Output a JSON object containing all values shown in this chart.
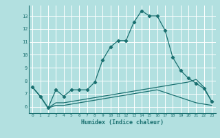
{
  "xlabel": "Humidex (Indice chaleur)",
  "ylabel": "",
  "background_color": "#b2e0e0",
  "grid_color": "#ffffff",
  "line_color": "#1a7070",
  "xlim": [
    -0.5,
    23.5
  ],
  "ylim": [
    5.5,
    13.8
  ],
  "yticks": [
    6,
    7,
    8,
    9,
    10,
    11,
    12,
    13
  ],
  "xticks": [
    0,
    1,
    2,
    3,
    4,
    5,
    6,
    7,
    8,
    9,
    10,
    11,
    12,
    13,
    14,
    15,
    16,
    17,
    18,
    19,
    20,
    21,
    22,
    23
  ],
  "series1_x": [
    0,
    1,
    2,
    3,
    4,
    5,
    6,
    7,
    8,
    9,
    10,
    11,
    12,
    13,
    14,
    15,
    16,
    17,
    18,
    19,
    20,
    21,
    22,
    23
  ],
  "series1_y": [
    7.5,
    6.8,
    5.9,
    7.3,
    6.8,
    7.3,
    7.3,
    7.3,
    7.9,
    9.6,
    10.6,
    11.1,
    11.1,
    12.5,
    13.4,
    13.0,
    13.0,
    11.9,
    9.8,
    8.8,
    8.2,
    7.8,
    7.4,
    6.4
  ],
  "series2_x": [
    0,
    1,
    2,
    3,
    4,
    5,
    6,
    7,
    8,
    9,
    10,
    11,
    12,
    13,
    14,
    15,
    16,
    17,
    18,
    19,
    20,
    21,
    22,
    23
  ],
  "series2_y": [
    7.5,
    6.8,
    5.9,
    6.3,
    6.3,
    6.4,
    6.5,
    6.6,
    6.7,
    6.8,
    6.9,
    7.0,
    7.1,
    7.2,
    7.3,
    7.4,
    7.5,
    7.6,
    7.7,
    7.8,
    7.9,
    8.1,
    7.5,
    6.4
  ],
  "series3_x": [
    0,
    1,
    2,
    3,
    4,
    5,
    6,
    7,
    8,
    9,
    10,
    11,
    12,
    13,
    14,
    15,
    16,
    17,
    18,
    19,
    20,
    21,
    22,
    23
  ],
  "series3_y": [
    7.5,
    6.8,
    5.9,
    6.1,
    6.1,
    6.2,
    6.3,
    6.4,
    6.5,
    6.6,
    6.7,
    6.8,
    6.9,
    7.0,
    7.1,
    7.2,
    7.3,
    7.1,
    6.9,
    6.7,
    6.5,
    6.3,
    6.2,
    6.1
  ]
}
